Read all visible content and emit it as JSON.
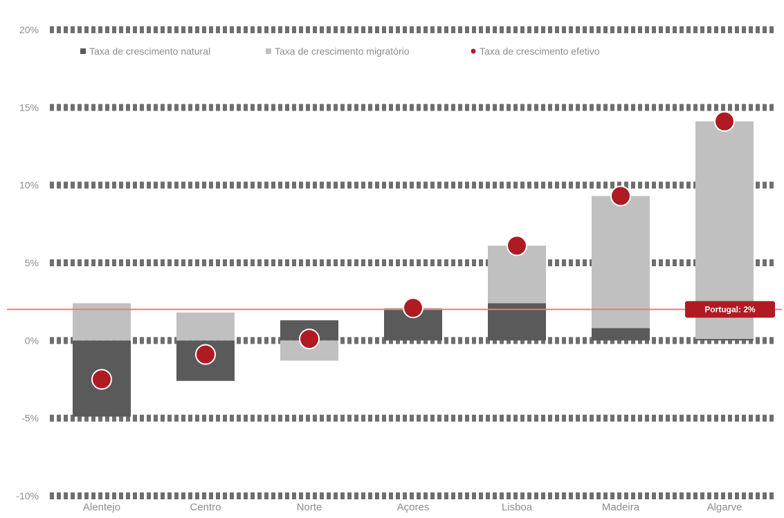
{
  "chart_data": {
    "type": "bar",
    "stacked": true,
    "categories": [
      "Alentejo",
      "Centro",
      "Norte",
      "Açores",
      "Lisboa",
      "Madeira",
      "Algarve"
    ],
    "series": [
      {
        "name": "Taxa de crescimento natural",
        "kind": "bar",
        "color": "#5a5a5a",
        "values": [
          -4.9,
          -2.6,
          1.3,
          2.0,
          2.4,
          0.8,
          0.1
        ]
      },
      {
        "name": "Taxa de crescimento migratório",
        "kind": "bar",
        "color": "#c0c0c0",
        "values": [
          2.4,
          1.8,
          -1.3,
          0.1,
          3.7,
          8.5,
          14.0
        ]
      },
      {
        "name": "Taxa de crescimento efetivo",
        "kind": "point",
        "color": "#b01a23",
        "values": [
          -2.5,
          -0.9,
          0.1,
          2.1,
          6.1,
          9.3,
          14.1
        ]
      }
    ],
    "y_ticks": [
      "20%",
      "15%",
      "10%",
      "5%",
      "0%",
      "-5%",
      "-10%"
    ],
    "ylim": [
      -10,
      20
    ],
    "grid": true,
    "legend_position": "top-left",
    "reference_line": {
      "value": 2,
      "label": "Portugal: 2%",
      "color": "#d98080",
      "label_color": "#b01a23"
    }
  }
}
